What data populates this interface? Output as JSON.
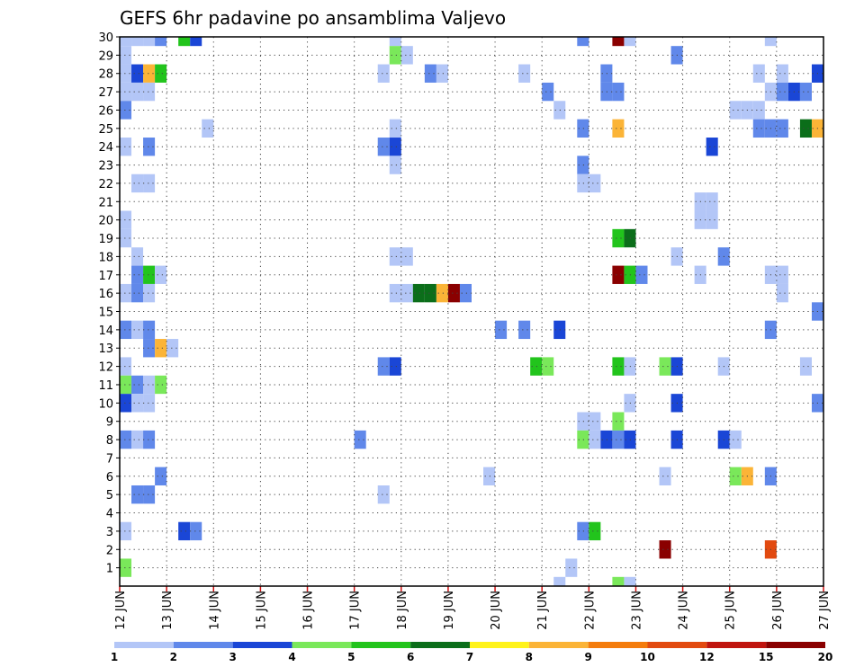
{
  "chart_data": {
    "type": "heatmap",
    "title": "GEFS 6hr padavine po ansamblima Valjevo",
    "xlabel": "",
    "ylabel": "",
    "x_start": "2024-06-12T00:00",
    "x_end": "2024-06-27T00:00",
    "x_step_hours": 6,
    "x_tick_labels": [
      "12 JUN",
      "13 JUN",
      "14 JUN",
      "15 JUN",
      "16 JUN",
      "17 JUN",
      "18 JUN",
      "19 JUN",
      "20 JUN",
      "21 JUN",
      "22 JUN",
      "23 JUN",
      "24 JUN",
      "25 JUN",
      "26 JUN",
      "27 JUN"
    ],
    "y_tick_labels": [
      1,
      2,
      3,
      4,
      5,
      6,
      7,
      8,
      9,
      10,
      11,
      12,
      13,
      14,
      15,
      16,
      17,
      18,
      19,
      20,
      21,
      22,
      23,
      24,
      25,
      26,
      27,
      28,
      29,
      30
    ],
    "ylim": [
      0,
      30
    ],
    "grid": true,
    "colorbar": {
      "labels": [
        "1",
        "2",
        "3",
        "4",
        "5",
        "6",
        "7",
        "8",
        "9",
        "10",
        "12",
        "15",
        "20"
      ],
      "colors": [
        "#b3c6f7",
        "#6088ea",
        "#1a46d6",
        "#7ae85a",
        "#22c41c",
        "#0b6e1a",
        "#fff31a",
        "#fbb437",
        "#f47c0c",
        "#e24a10",
        "#c0150f",
        "#8a0000"
      ]
    },
    "cells": [
      {
        "member": 30,
        "time": "2024-06-12T00:00",
        "mm": 1.5
      },
      {
        "member": 30,
        "time": "2024-06-12T06:00",
        "mm": 1.5
      },
      {
        "member": 30,
        "time": "2024-06-12T12:00",
        "mm": 1.5
      },
      {
        "member": 30,
        "time": "2024-06-12T18:00",
        "mm": 2.5
      },
      {
        "member": 30,
        "time": "2024-06-13T06:00",
        "mm": 5.5
      },
      {
        "member": 30,
        "time": "2024-06-13T12:00",
        "mm": 3.5
      },
      {
        "member": 30,
        "time": "2024-06-17T18:00",
        "mm": 1.5
      },
      {
        "member": 30,
        "time": "2024-06-21T18:00",
        "mm": 2.5
      },
      {
        "member": 30,
        "time": "2024-06-22T12:00",
        "mm": 18
      },
      {
        "member": 30,
        "time": "2024-06-22T18:00",
        "mm": 1.5
      },
      {
        "member": 30,
        "time": "2024-06-25T18:00",
        "mm": 1.5
      },
      {
        "member": 29,
        "time": "2024-06-12T00:00",
        "mm": 1.5
      },
      {
        "member": 29,
        "time": "2024-06-17T18:00",
        "mm": 4.5
      },
      {
        "member": 29,
        "time": "2024-06-18T00:00",
        "mm": 1.5
      },
      {
        "member": 29,
        "time": "2024-06-23T18:00",
        "mm": 2.5
      },
      {
        "member": 28,
        "time": "2024-06-12T00:00",
        "mm": 1.5
      },
      {
        "member": 28,
        "time": "2024-06-12T06:00",
        "mm": 3.5
      },
      {
        "member": 28,
        "time": "2024-06-12T12:00",
        "mm": 8.5
      },
      {
        "member": 28,
        "time": "2024-06-12T18:00",
        "mm": 5.5
      },
      {
        "member": 28,
        "time": "2024-06-17T12:00",
        "mm": 1.5
      },
      {
        "member": 28,
        "time": "2024-06-18T12:00",
        "mm": 2.5
      },
      {
        "member": 28,
        "time": "2024-06-18T18:00",
        "mm": 1.5
      },
      {
        "member": 28,
        "time": "2024-06-20T12:00",
        "mm": 1.5
      },
      {
        "member": 28,
        "time": "2024-06-22T06:00",
        "mm": 2.5
      },
      {
        "member": 28,
        "time": "2024-06-25T12:00",
        "mm": 1.5
      },
      {
        "member": 28,
        "time": "2024-06-26T00:00",
        "mm": 1.5
      },
      {
        "member": 28,
        "time": "2024-06-26T18:00",
        "mm": 3.5
      },
      {
        "member": 27,
        "time": "2024-06-12T00:00",
        "mm": 1.5
      },
      {
        "member": 27,
        "time": "2024-06-12T06:00",
        "mm": 1.5
      },
      {
        "member": 27,
        "time": "2024-06-12T12:00",
        "mm": 1.5
      },
      {
        "member": 27,
        "time": "2024-06-21T00:00",
        "mm": 2.5
      },
      {
        "member": 27,
        "time": "2024-06-22T06:00",
        "mm": 2.5
      },
      {
        "member": 27,
        "time": "2024-06-22T12:00",
        "mm": 2.5
      },
      {
        "member": 27,
        "time": "2024-06-25T18:00",
        "mm": 1.5
      },
      {
        "member": 27,
        "time": "2024-06-26T00:00",
        "mm": 2.5
      },
      {
        "member": 27,
        "time": "2024-06-26T06:00",
        "mm": 3.5
      },
      {
        "member": 27,
        "time": "2024-06-26T12:00",
        "mm": 2.5
      },
      {
        "member": 26,
        "time": "2024-06-12T00:00",
        "mm": 2.5
      },
      {
        "member": 26,
        "time": "2024-06-21T06:00",
        "mm": 1.5
      },
      {
        "member": 26,
        "time": "2024-06-25T00:00",
        "mm": 1.5
      },
      {
        "member": 26,
        "time": "2024-06-25T06:00",
        "mm": 1.5
      },
      {
        "member": 26,
        "time": "2024-06-25T12:00",
        "mm": 1.5
      },
      {
        "member": 25,
        "time": "2024-06-13T18:00",
        "mm": 1.5
      },
      {
        "member": 25,
        "time": "2024-06-17T18:00",
        "mm": 1.5
      },
      {
        "member": 25,
        "time": "2024-06-21T18:00",
        "mm": 2.5
      },
      {
        "member": 25,
        "time": "2024-06-22T12:00",
        "mm": 8.5
      },
      {
        "member": 25,
        "time": "2024-06-25T12:00",
        "mm": 2.5
      },
      {
        "member": 25,
        "time": "2024-06-25T18:00",
        "mm": 2.5
      },
      {
        "member": 25,
        "time": "2024-06-26T00:00",
        "mm": 2.5
      },
      {
        "member": 25,
        "time": "2024-06-26T12:00",
        "mm": 6.5
      },
      {
        "member": 25,
        "time": "2024-06-26T18:00",
        "mm": 8.5
      },
      {
        "member": 24,
        "time": "2024-06-12T00:00",
        "mm": 1.5
      },
      {
        "member": 24,
        "time": "2024-06-12T12:00",
        "mm": 2.5
      },
      {
        "member": 24,
        "time": "2024-06-17T12:00",
        "mm": 2.5
      },
      {
        "member": 24,
        "time": "2024-06-17T18:00",
        "mm": 3.5
      },
      {
        "member": 24,
        "time": "2024-06-24T12:00",
        "mm": 3.5
      },
      {
        "member": 23,
        "time": "2024-06-17T18:00",
        "mm": 1.5
      },
      {
        "member": 23,
        "time": "2024-06-21T18:00",
        "mm": 2.5
      },
      {
        "member": 22,
        "time": "2024-06-12T06:00",
        "mm": 1.5
      },
      {
        "member": 22,
        "time": "2024-06-12T12:00",
        "mm": 1.5
      },
      {
        "member": 22,
        "time": "2024-06-21T18:00",
        "mm": 1.5
      },
      {
        "member": 22,
        "time": "2024-06-22T00:00",
        "mm": 1.5
      },
      {
        "member": 21,
        "time": "2024-06-24T06:00",
        "mm": 1.5
      },
      {
        "member": 21,
        "time": "2024-06-24T12:00",
        "mm": 1.5
      },
      {
        "member": 20,
        "time": "2024-06-12T00:00",
        "mm": 1.5
      },
      {
        "member": 20,
        "time": "2024-06-24T06:00",
        "mm": 1.5
      },
      {
        "member": 20,
        "time": "2024-06-24T12:00",
        "mm": 1.5
      },
      {
        "member": 19,
        "time": "2024-06-12T00:00",
        "mm": 1.5
      },
      {
        "member": 19,
        "time": "2024-06-22T12:00",
        "mm": 5.5
      },
      {
        "member": 19,
        "time": "2024-06-22T18:00",
        "mm": 6.5
      },
      {
        "member": 18,
        "time": "2024-06-12T06:00",
        "mm": 1.5
      },
      {
        "member": 18,
        "time": "2024-06-17T18:00",
        "mm": 1.5
      },
      {
        "member": 18,
        "time": "2024-06-18T00:00",
        "mm": 1.5
      },
      {
        "member": 18,
        "time": "2024-06-23T18:00",
        "mm": 1.5
      },
      {
        "member": 18,
        "time": "2024-06-24T18:00",
        "mm": 2.5
      },
      {
        "member": 17,
        "time": "2024-06-12T06:00",
        "mm": 2.5
      },
      {
        "member": 17,
        "time": "2024-06-12T12:00",
        "mm": 5.5
      },
      {
        "member": 17,
        "time": "2024-06-12T18:00",
        "mm": 1.5
      },
      {
        "member": 17,
        "time": "2024-06-22T12:00",
        "mm": 18
      },
      {
        "member": 17,
        "time": "2024-06-22T18:00",
        "mm": 5.5
      },
      {
        "member": 17,
        "time": "2024-06-23T00:00",
        "mm": 2.5
      },
      {
        "member": 17,
        "time": "2024-06-24T06:00",
        "mm": 1.5
      },
      {
        "member": 17,
        "time": "2024-06-25T18:00",
        "mm": 1.5
      },
      {
        "member": 17,
        "time": "2024-06-26T00:00",
        "mm": 1.5
      },
      {
        "member": 16,
        "time": "2024-06-12T00:00",
        "mm": 1.5
      },
      {
        "member": 16,
        "time": "2024-06-12T06:00",
        "mm": 2.5
      },
      {
        "member": 16,
        "time": "2024-06-12T12:00",
        "mm": 1.5
      },
      {
        "member": 16,
        "time": "2024-06-17T18:00",
        "mm": 1.5
      },
      {
        "member": 16,
        "time": "2024-06-18T00:00",
        "mm": 1.5
      },
      {
        "member": 16,
        "time": "2024-06-18T06:00",
        "mm": 6.5
      },
      {
        "member": 16,
        "time": "2024-06-18T12:00",
        "mm": 6.5
      },
      {
        "member": 16,
        "time": "2024-06-18T18:00",
        "mm": 8.5
      },
      {
        "member": 16,
        "time": "2024-06-19T00:00",
        "mm": 18
      },
      {
        "member": 16,
        "time": "2024-06-19T06:00",
        "mm": 2.5
      },
      {
        "member": 16,
        "time": "2024-06-26T00:00",
        "mm": 1.5
      },
      {
        "member": 15,
        "time": "2024-06-26T18:00",
        "mm": 2.5
      },
      {
        "member": 14,
        "time": "2024-06-12T00:00",
        "mm": 2.5
      },
      {
        "member": 14,
        "time": "2024-06-12T06:00",
        "mm": 1.5
      },
      {
        "member": 14,
        "time": "2024-06-12T12:00",
        "mm": 2.5
      },
      {
        "member": 14,
        "time": "2024-06-20T00:00",
        "mm": 2.5
      },
      {
        "member": 14,
        "time": "2024-06-20T12:00",
        "mm": 2.5
      },
      {
        "member": 14,
        "time": "2024-06-21T06:00",
        "mm": 3.5
      },
      {
        "member": 14,
        "time": "2024-06-25T18:00",
        "mm": 2.5
      },
      {
        "member": 13,
        "time": "2024-06-12T12:00",
        "mm": 2.5
      },
      {
        "member": 13,
        "time": "2024-06-12T18:00",
        "mm": 8.5
      },
      {
        "member": 13,
        "time": "2024-06-13T00:00",
        "mm": 1.5
      },
      {
        "member": 12,
        "time": "2024-06-12T00:00",
        "mm": 1.5
      },
      {
        "member": 12,
        "time": "2024-06-17T12:00",
        "mm": 2.5
      },
      {
        "member": 12,
        "time": "2024-06-17T18:00",
        "mm": 3.5
      },
      {
        "member": 12,
        "time": "2024-06-20T18:00",
        "mm": 5.5
      },
      {
        "member": 12,
        "time": "2024-06-21T00:00",
        "mm": 4.5
      },
      {
        "member": 12,
        "time": "2024-06-22T12:00",
        "mm": 5.5
      },
      {
        "member": 12,
        "time": "2024-06-22T18:00",
        "mm": 1.5
      },
      {
        "member": 12,
        "time": "2024-06-23T12:00",
        "mm": 4.5
      },
      {
        "member": 12,
        "time": "2024-06-23T18:00",
        "mm": 3.5
      },
      {
        "member": 12,
        "time": "2024-06-24T18:00",
        "mm": 1.5
      },
      {
        "member": 12,
        "time": "2024-06-26T12:00",
        "mm": 1.5
      },
      {
        "member": 11,
        "time": "2024-06-12T00:00",
        "mm": 4.5
      },
      {
        "member": 11,
        "time": "2024-06-12T06:00",
        "mm": 2.5
      },
      {
        "member": 11,
        "time": "2024-06-12T12:00",
        "mm": 1.5
      },
      {
        "member": 11,
        "time": "2024-06-12T18:00",
        "mm": 4.5
      },
      {
        "member": 10,
        "time": "2024-06-12T00:00",
        "mm": 3.5
      },
      {
        "member": 10,
        "time": "2024-06-12T06:00",
        "mm": 1.5
      },
      {
        "member": 10,
        "time": "2024-06-12T12:00",
        "mm": 1.5
      },
      {
        "member": 10,
        "time": "2024-06-22T18:00",
        "mm": 1.5
      },
      {
        "member": 10,
        "time": "2024-06-23T18:00",
        "mm": 3.5
      },
      {
        "member": 10,
        "time": "2024-06-26T18:00",
        "mm": 2.5
      },
      {
        "member": 9,
        "time": "2024-06-21T18:00",
        "mm": 1.5
      },
      {
        "member": 9,
        "time": "2024-06-22T00:00",
        "mm": 1.5
      },
      {
        "member": 9,
        "time": "2024-06-22T12:00",
        "mm": 4.5
      },
      {
        "member": 8,
        "time": "2024-06-12T00:00",
        "mm": 2.5
      },
      {
        "member": 8,
        "time": "2024-06-12T06:00",
        "mm": 1.5
      },
      {
        "member": 8,
        "time": "2024-06-12T12:00",
        "mm": 2.5
      },
      {
        "member": 8,
        "time": "2024-06-17T00:00",
        "mm": 2.5
      },
      {
        "member": 8,
        "time": "2024-06-21T18:00",
        "mm": 4.5
      },
      {
        "member": 8,
        "time": "2024-06-22T00:00",
        "mm": 1.5
      },
      {
        "member": 8,
        "time": "2024-06-22T06:00",
        "mm": 3.5
      },
      {
        "member": 8,
        "time": "2024-06-22T12:00",
        "mm": 2.5
      },
      {
        "member": 8,
        "time": "2024-06-22T18:00",
        "mm": 3.5
      },
      {
        "member": 8,
        "time": "2024-06-23T18:00",
        "mm": 3.5
      },
      {
        "member": 8,
        "time": "2024-06-24T18:00",
        "mm": 3.5
      },
      {
        "member": 8,
        "time": "2024-06-25T00:00",
        "mm": 1.5
      },
      {
        "member": 6,
        "time": "2024-06-12T18:00",
        "mm": 2.5
      },
      {
        "member": 6,
        "time": "2024-06-19T18:00",
        "mm": 1.5
      },
      {
        "member": 6,
        "time": "2024-06-23T12:00",
        "mm": 1.5
      },
      {
        "member": 6,
        "time": "2024-06-25T00:00",
        "mm": 4.5
      },
      {
        "member": 6,
        "time": "2024-06-25T06:00",
        "mm": 8.5
      },
      {
        "member": 6,
        "time": "2024-06-25T18:00",
        "mm": 2.5
      },
      {
        "member": 5,
        "time": "2024-06-12T06:00",
        "mm": 2.5
      },
      {
        "member": 5,
        "time": "2024-06-12T12:00",
        "mm": 2.5
      },
      {
        "member": 5,
        "time": "2024-06-17T12:00",
        "mm": 1.5
      },
      {
        "member": 3,
        "time": "2024-06-12T00:00",
        "mm": 1.5
      },
      {
        "member": 3,
        "time": "2024-06-13T06:00",
        "mm": 3.5
      },
      {
        "member": 3,
        "time": "2024-06-13T12:00",
        "mm": 2.5
      },
      {
        "member": 3,
        "time": "2024-06-21T18:00",
        "mm": 2.5
      },
      {
        "member": 3,
        "time": "2024-06-22T00:00",
        "mm": 5.5
      },
      {
        "member": 2,
        "time": "2024-06-23T12:00",
        "mm": 18
      },
      {
        "member": 2,
        "time": "2024-06-25T18:00",
        "mm": 11
      },
      {
        "member": 1,
        "time": "2024-06-12T00:00",
        "mm": 4.5
      },
      {
        "member": 1,
        "time": "2024-06-21T12:00",
        "mm": 1.5
      },
      {
        "member": 0,
        "time": "2024-06-21T06:00",
        "mm": 1.5
      },
      {
        "member": 0,
        "time": "2024-06-22T12:00",
        "mm": 4.5
      },
      {
        "member": 0,
        "time": "2024-06-22T18:00",
        "mm": 1.5
      }
    ]
  }
}
